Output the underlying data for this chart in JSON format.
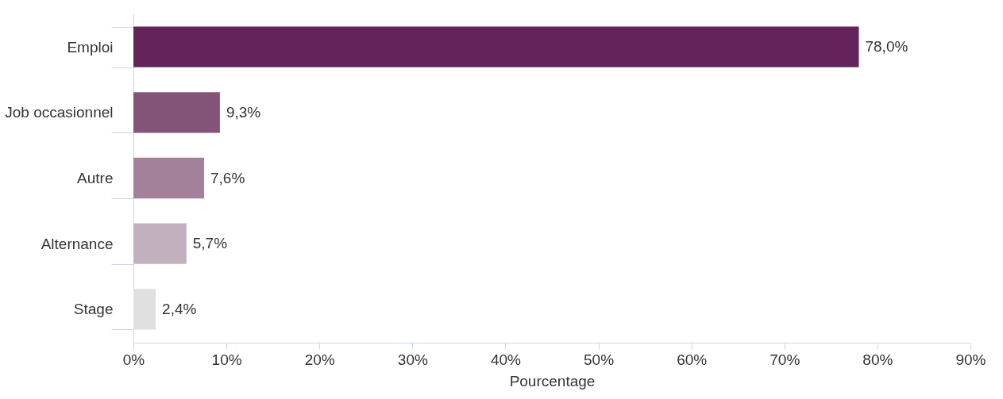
{
  "chart_data": {
    "type": "bar",
    "orientation": "horizontal",
    "xlabel": "Pourcentage",
    "categories": [
      "Emploi",
      "Job occasionnel",
      "Autre",
      "Alternance",
      "Stage"
    ],
    "values": [
      78.0,
      9.3,
      7.6,
      5.7,
      2.4
    ],
    "colors": [
      "#632559",
      "#845478",
      "#a3819b",
      "#c3b0bf",
      "#e0e0e0"
    ],
    "value_labels": [
      "78,0%",
      "9,3%",
      "7,6%",
      "5,7%",
      "2,4%"
    ],
    "xlim": [
      0,
      90
    ],
    "xticks": [
      {
        "value": 0,
        "label": "0%"
      },
      {
        "value": 10,
        "label": "10%"
      },
      {
        "value": 20,
        "label": "20%"
      },
      {
        "value": 30,
        "label": "30%"
      },
      {
        "value": 40,
        "label": "40%"
      },
      {
        "value": 50,
        "label": "50%"
      },
      {
        "value": 60,
        "label": "60%"
      },
      {
        "value": 70,
        "label": "70%"
      },
      {
        "value": 80,
        "label": "80%"
      },
      {
        "value": 90,
        "label": "90%"
      }
    ],
    "grid": false,
    "legend": false
  }
}
